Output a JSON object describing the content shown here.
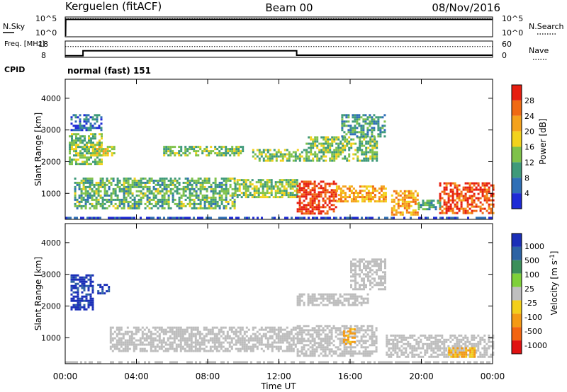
{
  "header": {
    "station": "Kerguelen (fitACF)",
    "beam": "Beam 00",
    "date": "08/Nov/2016"
  },
  "colors": {
    "power_scale": [
      "#1e2ad6",
      "#2f6fb6",
      "#3f9a7a",
      "#7fc24a",
      "#f2d21c",
      "#f5a21c",
      "#f06a12",
      "#e61e10"
    ],
    "velocity_scale": [
      "#1b2fb8",
      "#2d63a4",
      "#3c8f5a",
      "#7fd03a",
      "#bfbfbf",
      "#f3cf1a",
      "#f49a14",
      "#f26410",
      "#e01212"
    ],
    "ground_scatter": "#bdbdbd"
  },
  "chart_data": [
    {
      "type": "line",
      "name": "nsky-nsearch",
      "labels": {
        "left": "N.Sky",
        "right": "N.Search"
      },
      "left_ticks": [
        "10^5",
        "10^0"
      ],
      "right_ticks": [
        "10^5",
        "10^0"
      ],
      "x_range_hours": [
        0,
        24
      ],
      "series": [
        {
          "legend": "N.Sky",
          "style": "solid",
          "x": [
            0.0,
            0.02,
            0.03,
            24.0
          ],
          "y": [
            1,
            1,
            50000,
            50000
          ]
        },
        {
          "legend": "N.Search",
          "style": "dotted",
          "x": [
            0.0,
            24.0
          ],
          "y": [
            50000,
            50000
          ]
        }
      ]
    },
    {
      "type": "line",
      "name": "freq-nave",
      "labels": {
        "left": "Freq. [MHz]",
        "right": "Nave"
      },
      "left_ticks": [
        "18",
        "8"
      ],
      "right_ticks": [
        "60",
        "0"
      ],
      "ylim_left": [
        8,
        18
      ],
      "ylim_right": [
        0,
        60
      ],
      "series": [
        {
          "legend": "Freq.",
          "style": "solid",
          "x": [
            0.0,
            1.0,
            1.0,
            13.0,
            13.0,
            24.0
          ],
          "y": [
            9.0,
            9.0,
            12.0,
            12.0,
            9.3,
            9.3
          ]
        },
        {
          "legend": "Nave",
          "style": "dotted",
          "x": [
            0.0,
            24.0
          ],
          "y": [
            40,
            40
          ]
        }
      ]
    },
    {
      "type": "heatmap",
      "name": "power",
      "cpid_label": "CPID",
      "cpid": "normal (fast) 151",
      "ylabel": "Slant Range [km]",
      "yticks": [
        "1000",
        "2000",
        "3000",
        "4000"
      ],
      "ylim": [
        180,
        4600
      ],
      "colorbar": {
        "label": "Power [dB]",
        "ticks": [
          "4",
          "8",
          "12",
          "16",
          "20",
          "24",
          "28"
        ],
        "range": [
          0,
          32
        ]
      },
      "regions": [
        {
          "t": [
            0.0,
            24.0
          ],
          "r": [
            200,
            260
          ],
          "value": 3
        },
        {
          "t": [
            0.5,
            9.5
          ],
          "r": [
            500,
            1500
          ],
          "value": 12
        },
        {
          "t": [
            9.5,
            13.0
          ],
          "r": [
            900,
            1450
          ],
          "value": 14
        },
        {
          "t": [
            13.0,
            15.2
          ],
          "r": [
            350,
            1400
          ],
          "value": 29
        },
        {
          "t": [
            15.2,
            18.0
          ],
          "r": [
            750,
            1250
          ],
          "value": 22
        },
        {
          "t": [
            18.3,
            19.8
          ],
          "r": [
            350,
            1100
          ],
          "value": 22
        },
        {
          "t": [
            19.8,
            21.0
          ],
          "r": [
            500,
            800
          ],
          "value": 12
        },
        {
          "t": [
            21.0,
            24.0
          ],
          "r": [
            350,
            1350
          ],
          "value": 28
        },
        {
          "t": [
            0.2,
            2.0
          ],
          "r": [
            1900,
            2900
          ],
          "value": 13
        },
        {
          "t": [
            1.5,
            2.8
          ],
          "r": [
            2200,
            2500
          ],
          "value": 18
        },
        {
          "t": [
            5.5,
            10.0
          ],
          "r": [
            2200,
            2500
          ],
          "value": 13
        },
        {
          "t": [
            10.5,
            13.5
          ],
          "r": [
            2000,
            2400
          ],
          "value": 14
        },
        {
          "t": [
            13.5,
            17.5
          ],
          "r": [
            2000,
            2800
          ],
          "value": 13
        },
        {
          "t": [
            15.5,
            18.0
          ],
          "r": [
            2800,
            3500
          ],
          "value": 10
        },
        {
          "t": [
            0.3,
            2.0
          ],
          "r": [
            3000,
            3500
          ],
          "value": 6
        }
      ]
    },
    {
      "type": "heatmap",
      "name": "velocity",
      "ylabel": "Slant Range [km]",
      "yticks": [
        "1000",
        "2000",
        "3000",
        "4000"
      ],
      "ylim": [
        180,
        4600
      ],
      "xlabel": "Time UT",
      "xticks": [
        "00:00",
        "04:00",
        "08:00",
        "12:00",
        "16:00",
        "20:00",
        "00:00"
      ],
      "xlim_hours": [
        0,
        24
      ],
      "colorbar": {
        "label": "Velocity [m s^-1]",
        "ticks": [
          "1000",
          "500",
          "100",
          "25",
          "-25",
          "-100",
          "-500",
          "-1000"
        ]
      },
      "regions": [
        {
          "t": [
            0.0,
            24.0
          ],
          "r": [
            200,
            260
          ],
          "value": "ground"
        },
        {
          "t": [
            2.5,
            13.0
          ],
          "r": [
            600,
            1350
          ],
          "value": "ground"
        },
        {
          "t": [
            13.0,
            17.5
          ],
          "r": [
            400,
            1400
          ],
          "value": "ground"
        },
        {
          "t": [
            15.6,
            16.2
          ],
          "r": [
            800,
            1300
          ],
          "value": -150
        },
        {
          "t": [
            18.0,
            24.0
          ],
          "r": [
            400,
            1100
          ],
          "value": "ground"
        },
        {
          "t": [
            0.3,
            1.6
          ],
          "r": [
            1900,
            3000
          ],
          "value": 900
        },
        {
          "t": [
            1.8,
            2.5
          ],
          "r": [
            2400,
            2700
          ],
          "value": 900
        },
        {
          "t": [
            21.5,
            23.0
          ],
          "r": [
            400,
            700
          ],
          "value": -150
        },
        {
          "t": [
            13.0,
            17.0
          ],
          "r": [
            2000,
            2400
          ],
          "value": "ground"
        },
        {
          "t": [
            16.0,
            18.0
          ],
          "r": [
            2500,
            3500
          ],
          "value": "ground"
        }
      ]
    }
  ]
}
